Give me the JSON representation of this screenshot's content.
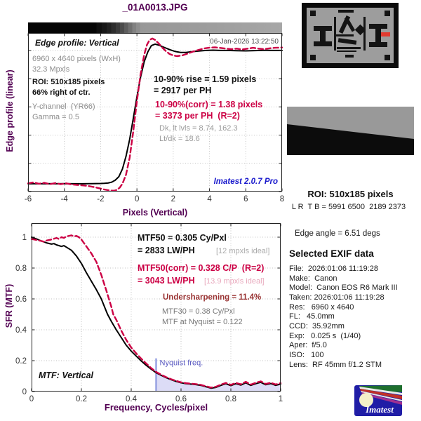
{
  "window": {
    "title": "_01A0013.JPG"
  },
  "colors": {
    "heading_purple": "#520052",
    "crimson": "#cc0044",
    "version_blue": "#1818cc",
    "undersharpening_red": "#993333",
    "nyquist_blue": "#5858c0"
  },
  "right_panel": {
    "roi_title": "ROI: 510x185 pixels",
    "roi_coords": "L R  T B = 5991 6500  2189 2373",
    "edge_angle": "Edge angle = 6.51 degs",
    "exif_heading": "Selected EXIF data",
    "exif_lines": [
      "File:  2026:01:06 11:19:28",
      "Make:  Canon",
      "Model:  Canon EOS R6 Mark III",
      "Taken: 2026:01:06 11:19:28",
      "Res:   6960 x 4640",
      "FL:   45.0mm",
      "CCD:  35.92mm",
      "Exp:   0.025 s  (1/40)",
      "Aper:  f/5.0",
      "ISO:   100",
      "Lens:  RF 45mm f/1.2 STM"
    ]
  },
  "logo": {
    "text": "Imatest"
  },
  "chart_data": [
    {
      "type": "line",
      "title": "Edge profile: Vertical",
      "timestamp": "06-Jan-2026 13:22:50",
      "xlabel": "Pixels (Vertical)",
      "ylabel": "Edge profile (linear)",
      "xlim": [
        -6,
        8
      ],
      "ylim": [
        0,
        1.124
      ],
      "xticks": [
        -6,
        -4,
        -2,
        0,
        2,
        4,
        6,
        8
      ],
      "xtick_labels": [
        "-6",
        "-4",
        "-2",
        "0",
        "2",
        "4",
        "6",
        "8"
      ],
      "yticks": [
        0,
        0.2,
        0.4,
        0.6,
        0.8,
        1
      ],
      "ytick_labels": [],
      "grid": true,
      "info": {
        "dimensions": "6960 x 4640 pixels (WxH)",
        "megapixels": "32.3 Mpxls",
        "roi": "ROI: 510x185 pixels",
        "roi_position": "66% right of ctr.",
        "channel": "Y-channel  (YR66)",
        "gamma": "Gamma = 0.5"
      },
      "annotations": {
        "rise": "10-90% rise = 1.59 pixels",
        "rise_ph": "= 2917 per PH",
        "rise_corr": "10-90%(corr) = 1.38 pixels",
        "rise_corr_ph": "= 3373 per PH  (R=2)",
        "levels": "Dk, lt lvls = 8.74, 162.3",
        "lt_dk": "Lt/dk = 18.6",
        "version": "Imatest 2.0.7 Pro"
      },
      "series": [
        {
          "name": "edge-profile",
          "color": "#000000",
          "dash": null,
          "width": 2,
          "points": [
            [
              -6,
              0.055
            ],
            [
              -5.5,
              0.055
            ],
            [
              -5,
              0.056
            ],
            [
              -4.5,
              0.055
            ],
            [
              -4,
              0.056
            ],
            [
              -3.5,
              0.055
            ],
            [
              -3,
              0.055
            ],
            [
              -2.5,
              0.056
            ],
            [
              -2,
              0.057
            ],
            [
              -1.8,
              0.058
            ],
            [
              -1.6,
              0.06
            ],
            [
              -1.4,
              0.066
            ],
            [
              -1.2,
              0.08
            ],
            [
              -1,
              0.105
            ],
            [
              -0.8,
              0.16
            ],
            [
              -0.6,
              0.25
            ],
            [
              -0.4,
              0.37
            ],
            [
              -0.2,
              0.52
            ],
            [
              0,
              0.67
            ],
            [
              0.2,
              0.81
            ],
            [
              0.4,
              0.92
            ],
            [
              0.6,
              0.99
            ],
            [
              0.8,
              1.035
            ],
            [
              1,
              1.045
            ],
            [
              1.2,
              1.038
            ],
            [
              1.5,
              1.022
            ],
            [
              1.8,
              1.006
            ],
            [
              2.1,
              0.993
            ],
            [
              2.4,
              0.986
            ],
            [
              2.7,
              0.986
            ],
            [
              3,
              0.991
            ],
            [
              3.4,
              0.996
            ],
            [
              3.8,
              1
            ],
            [
              4.2,
              1.002
            ],
            [
              4.6,
              1
            ],
            [
              5,
              1
            ],
            [
              5.5,
              0.998
            ],
            [
              6,
              0.997
            ],
            [
              6.5,
              0.999
            ],
            [
              7,
              1.001
            ],
            [
              7.5,
              1
            ],
            [
              8,
              1
            ]
          ]
        },
        {
          "name": "edge-profile-corrected",
          "color": "#cc0044",
          "dash": "7 4",
          "width": 2.4,
          "points": [
            [
              -6,
              0.058
            ],
            [
              -5.7,
              0.065
            ],
            [
              -5.4,
              0.055
            ],
            [
              -5.1,
              0.062
            ],
            [
              -4.8,
              0.052
            ],
            [
              -4.5,
              0.06
            ],
            [
              -4.2,
              0.052
            ],
            [
              -3.9,
              0.058
            ],
            [
              -3.6,
              0.05
            ],
            [
              -3.3,
              0.047
            ],
            [
              -3,
              0.044
            ],
            [
              -2.7,
              0.04
            ],
            [
              -2.4,
              0.033
            ],
            [
              -2.1,
              0.024
            ],
            [
              -1.8,
              0.015
            ],
            [
              -1.6,
              0.01
            ],
            [
              -1.4,
              0.007
            ],
            [
              -1.25,
              0.006
            ],
            [
              -1.1,
              0.012
            ],
            [
              -0.95,
              0.028
            ],
            [
              -0.8,
              0.055
            ],
            [
              -0.6,
              0.12
            ],
            [
              -0.4,
              0.24
            ],
            [
              -0.2,
              0.43
            ],
            [
              0,
              0.64
            ],
            [
              0.2,
              0.83
            ],
            [
              0.4,
              0.97
            ],
            [
              0.55,
              1.04
            ],
            [
              0.7,
              1.075
            ],
            [
              0.85,
              1.085
            ],
            [
              1,
              1.075
            ],
            [
              1.2,
              1.05
            ],
            [
              1.4,
              1.02
            ],
            [
              1.6,
              0.995
            ],
            [
              1.8,
              0.975
            ],
            [
              2,
              0.965
            ],
            [
              2.2,
              0.96
            ],
            [
              2.5,
              0.965
            ],
            [
              2.8,
              0.978
            ],
            [
              3.1,
              0.992
            ],
            [
              3.4,
              1.004
            ],
            [
              3.7,
              1.014
            ],
            [
              4,
              1.02
            ],
            [
              4.3,
              1.022
            ],
            [
              4.6,
              1.018
            ],
            [
              4.9,
              1.013
            ],
            [
              5.2,
              1.009
            ],
            [
              5.5,
              1.013
            ],
            [
              5.8,
              1.007
            ],
            [
              6.1,
              1.013
            ],
            [
              6.4,
              1.019
            ],
            [
              6.7,
              1.013
            ],
            [
              7,
              1.009
            ],
            [
              7.3,
              1.015
            ],
            [
              7.6,
              1.019
            ],
            [
              8,
              1.021
            ]
          ]
        }
      ]
    },
    {
      "type": "line",
      "plot_label": "MTF: Vertical",
      "xlabel": "Frequency, Cycles/pixel",
      "ylabel": "SFR (MTF)",
      "xlim": [
        0,
        1
      ],
      "ylim": [
        0,
        1.0909
      ],
      "xticks": [
        0,
        0.2,
        0.4,
        0.6,
        0.8,
        1
      ],
      "xtick_labels": [
        "0",
        "0.2",
        "0.4",
        "0.6",
        "0.8",
        "1"
      ],
      "yticks": [
        0,
        0.2,
        0.4,
        0.6,
        0.8,
        1
      ],
      "ytick_labels": [
        "0",
        "0.2",
        "0.4",
        "0.6",
        "0.8",
        "1"
      ],
      "grid": true,
      "nyquist": {
        "x": 0.5,
        "label": "Nyquist freq.",
        "line_top": 0.215,
        "line_color": "#98a2e2",
        "fill_color": "#dcdcf6",
        "label_color": "#5858c0"
      },
      "annotations": {
        "mtf50": "MTF50 = 0.305 Cy/Pxl",
        "mtf50_lwph": "= 2833 LW/PH",
        "mtf50_ideal": "[12 mpxls ideal]",
        "mtf50_corr": "MTF50(corr) = 0.328 C/P  (R=2)",
        "mtf50_corr_lwph": "= 3043 LW/PH",
        "mtf50_corr_ideal": "[13.9 mpxls ideal]",
        "undersharpening": "Undersharpening = 11.4%",
        "mtf30": "MTF30 = 0.38 Cy/Pxl",
        "mtf_nyquist": "MTF at Nyquist = 0.122"
      },
      "series": [
        {
          "name": "mtf",
          "color": "#000000",
          "dash": null,
          "width": 2,
          "points": [
            [
              0,
              1
            ],
            [
              0.02,
              0.988
            ],
            [
              0.04,
              0.975
            ],
            [
              0.06,
              0.963
            ],
            [
              0.08,
              0.955
            ],
            [
              0.09,
              0.958
            ],
            [
              0.1,
              0.95
            ],
            [
              0.12,
              0.94
            ],
            [
              0.13,
              0.945
            ],
            [
              0.14,
              0.935
            ],
            [
              0.16,
              0.915
            ],
            [
              0.18,
              0.878
            ],
            [
              0.2,
              0.83
            ],
            [
              0.22,
              0.77
            ],
            [
              0.24,
              0.715
            ],
            [
              0.26,
              0.66
            ],
            [
              0.28,
              0.6
            ],
            [
              0.3,
              0.52
            ],
            [
              0.305,
              0.5
            ],
            [
              0.32,
              0.455
            ],
            [
              0.34,
              0.4
            ],
            [
              0.36,
              0.35
            ],
            [
              0.38,
              0.3
            ],
            [
              0.4,
              0.262
            ],
            [
              0.42,
              0.23
            ],
            [
              0.44,
              0.198
            ],
            [
              0.46,
              0.17
            ],
            [
              0.48,
              0.145
            ],
            [
              0.5,
              0.122
            ],
            [
              0.52,
              0.105
            ],
            [
              0.54,
              0.09
            ],
            [
              0.56,
              0.077
            ],
            [
              0.58,
              0.066
            ],
            [
              0.6,
              0.057
            ],
            [
              0.62,
              0.051
            ],
            [
              0.64,
              0.048
            ],
            [
              0.66,
              0.045
            ],
            [
              0.68,
              0.04
            ],
            [
              0.7,
              0.031
            ],
            [
              0.72,
              0.022
            ],
            [
              0.74,
              0.027
            ],
            [
              0.76,
              0.04
            ],
            [
              0.78,
              0.051
            ],
            [
              0.8,
              0.038
            ],
            [
              0.82,
              0.051
            ],
            [
              0.84,
              0.042
            ],
            [
              0.86,
              0.057
            ],
            [
              0.88,
              0.04
            ],
            [
              0.9,
              0.051
            ],
            [
              0.92,
              0.06
            ],
            [
              0.94,
              0.044
            ],
            [
              0.96,
              0.052
            ],
            [
              0.98,
              0.04
            ],
            [
              1,
              0.048
            ]
          ]
        },
        {
          "name": "mtf-corrected",
          "color": "#cc0044",
          "dash": "7 4",
          "width": 2.4,
          "points": [
            [
              0,
              0.988
            ],
            [
              0.02,
              0.982
            ],
            [
              0.04,
              0.975
            ],
            [
              0.05,
              0.97
            ],
            [
              0.06,
              0.978
            ],
            [
              0.08,
              0.985
            ],
            [
              0.1,
              0.995
            ],
            [
              0.11,
              0.988
            ],
            [
              0.12,
              1
            ],
            [
              0.13,
              0.995
            ],
            [
              0.14,
              1.005
            ],
            [
              0.16,
              1.012
            ],
            [
              0.17,
              1.005
            ],
            [
              0.18,
              1.008
            ],
            [
              0.19,
              1
            ],
            [
              0.2,
              0.985
            ],
            [
              0.22,
              0.94
            ],
            [
              0.24,
              0.895
            ],
            [
              0.26,
              0.84
            ],
            [
              0.28,
              0.755
            ],
            [
              0.3,
              0.655
            ],
            [
              0.32,
              0.55
            ],
            [
              0.328,
              0.5
            ],
            [
              0.34,
              0.465
            ],
            [
              0.36,
              0.395
            ],
            [
              0.38,
              0.335
            ],
            [
              0.4,
              0.285
            ],
            [
              0.42,
              0.247
            ],
            [
              0.44,
              0.213
            ],
            [
              0.46,
              0.182
            ],
            [
              0.48,
              0.152
            ],
            [
              0.5,
              0.127
            ],
            [
              0.52,
              0.109
            ],
            [
              0.54,
              0.093
            ],
            [
              0.56,
              0.08
            ],
            [
              0.58,
              0.069
            ],
            [
              0.6,
              0.06
            ],
            [
              0.62,
              0.054
            ],
            [
              0.64,
              0.051
            ],
            [
              0.66,
              0.048
            ],
            [
              0.68,
              0.043
            ],
            [
              0.7,
              0.034
            ],
            [
              0.72,
              0.026
            ],
            [
              0.74,
              0.031
            ],
            [
              0.76,
              0.045
            ],
            [
              0.78,
              0.056
            ],
            [
              0.8,
              0.043
            ],
            [
              0.82,
              0.056
            ],
            [
              0.84,
              0.047
            ],
            [
              0.86,
              0.063
            ],
            [
              0.88,
              0.045
            ],
            [
              0.9,
              0.057
            ],
            [
              0.92,
              0.066
            ],
            [
              0.94,
              0.049
            ],
            [
              0.96,
              0.057
            ],
            [
              0.98,
              0.046
            ],
            [
              1,
              0.054
            ]
          ]
        }
      ]
    }
  ]
}
